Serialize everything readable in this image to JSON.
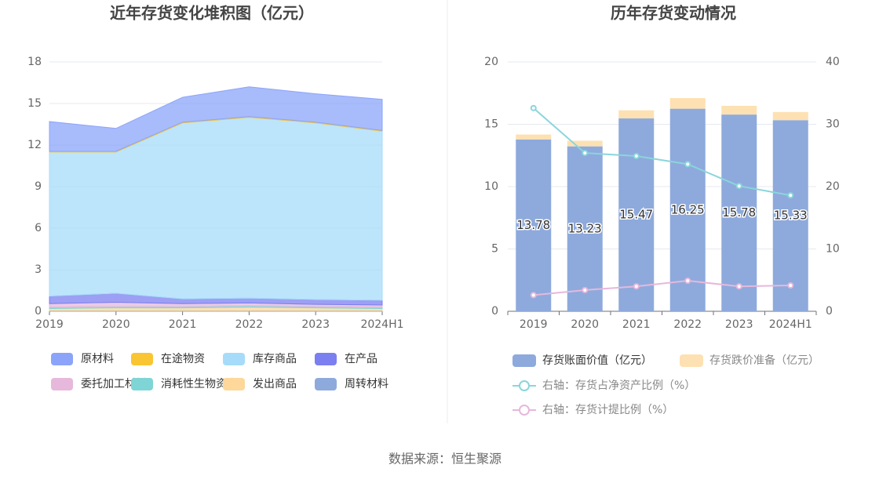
{
  "chart_data": [
    {
      "type": "area",
      "title": "近年存货变化堆积图（亿元）",
      "categories": [
        "2019",
        "2020",
        "2021",
        "2022",
        "2023",
        "2024H1"
      ],
      "ylim": [
        0,
        18
      ],
      "yticks": [
        0,
        3,
        6,
        9,
        12,
        15,
        18
      ],
      "grid": true,
      "series": [
        {
          "name": "原材料",
          "color": "#8ba4f9",
          "values": [
            2.15,
            1.65,
            1.8,
            2.15,
            2.05,
            2.25
          ]
        },
        {
          "name": "在途物资",
          "color": "#fac532",
          "values": [
            0.05,
            0.05,
            0.05,
            0.05,
            0.05,
            0.05
          ]
        },
        {
          "name": "库存商品",
          "color": "#a6dcf9",
          "values": [
            10.4,
            10.2,
            12.7,
            13.05,
            12.75,
            12.2
          ]
        },
        {
          "name": "在产品",
          "color": "#7b7ff0",
          "values": [
            0.55,
            0.65,
            0.35,
            0.35,
            0.35,
            0.35
          ]
        },
        {
          "name": "委托加工材料",
          "color": "#e6b8dc",
          "values": [
            0.25,
            0.3,
            0.2,
            0.2,
            0.15,
            0.15
          ]
        },
        {
          "name": "消耗性生物资产",
          "color": "#7fd5d5",
          "values": [
            0.1,
            0.1,
            0.1,
            0.1,
            0.1,
            0.1
          ]
        },
        {
          "name": "发出商品",
          "color": "#fdd89a",
          "values": [
            0.15,
            0.2,
            0.2,
            0.25,
            0.2,
            0.15
          ]
        },
        {
          "name": "周转材料",
          "color": "#8eaadc",
          "values": [
            0.05,
            0.05,
            0.05,
            0.05,
            0.05,
            0.05
          ]
        }
      ]
    },
    {
      "type": "bar_line",
      "title": "历年存货变动情况",
      "categories": [
        "2019",
        "2020",
        "2021",
        "2022",
        "2023",
        "2024H1"
      ],
      "ylim": [
        0,
        20
      ],
      "yticks": [
        0,
        5,
        10,
        15,
        20
      ],
      "y2lim": [
        0,
        40
      ],
      "y2ticks": [
        0,
        10,
        20,
        30,
        40
      ],
      "grid": true,
      "series": [
        {
          "name": "存货账面价值（亿元）",
          "color": "#8eaadc",
          "values": [
            13.78,
            13.23,
            15.47,
            16.25,
            15.78,
            15.33
          ]
        },
        {
          "name": "存货跌价准备（亿元）",
          "color": "#fde1b2",
          "values": [
            0.4,
            0.45,
            0.65,
            0.85,
            0.7,
            0.65
          ]
        },
        {
          "name": "右轴：存货占净资产比例（%）",
          "color": "#8ad5dc",
          "axis": "y2",
          "values": [
            32.6,
            25.4,
            24.9,
            23.6,
            20.1,
            18.6
          ]
        },
        {
          "name": "右轴：存货计提比例（%）",
          "color": "#e6b8dc",
          "axis": "y2",
          "values": [
            2.6,
            3.4,
            4.0,
            4.9,
            4.0,
            4.15
          ]
        }
      ]
    }
  ],
  "source": "数据来源：恒生聚源"
}
